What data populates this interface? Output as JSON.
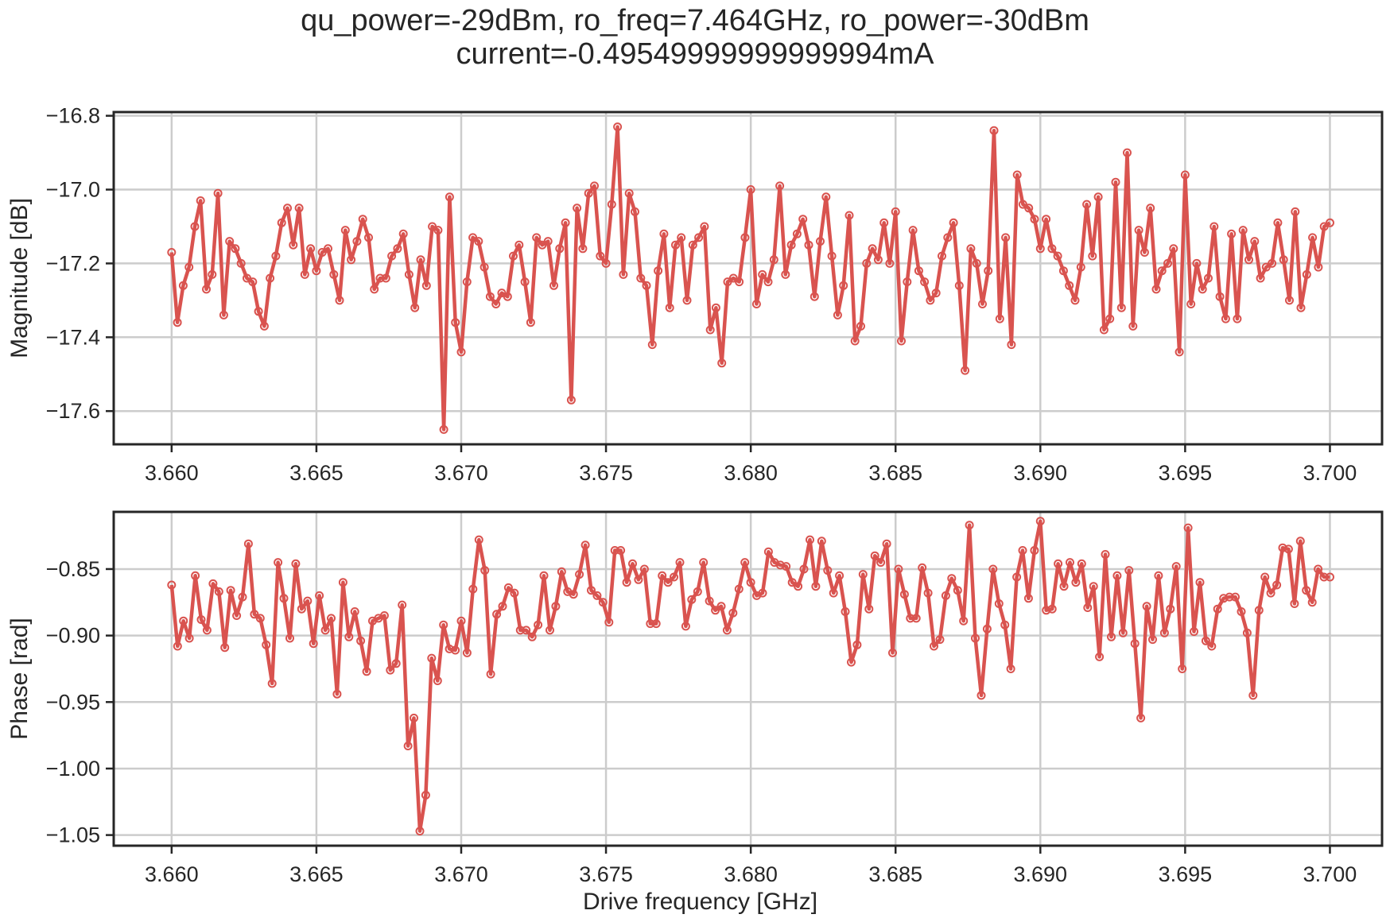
{
  "figure": {
    "title_line1": "qu_power=-29dBm, ro_freq=7.464GHz, ro_power=-30dBm",
    "title_line2": "current=-0.49549999999999994mA"
  },
  "colors": {
    "series": "#d9534f",
    "grid": "#cccccc",
    "axes": "#262626"
  },
  "chart_data": [
    {
      "type": "line",
      "xlabel": "",
      "ylabel": "Magnitude [dB]",
      "xlim": [
        3.658,
        3.7018
      ],
      "ylim": [
        -17.69,
        -16.79
      ],
      "xticks": [
        3.66,
        3.665,
        3.67,
        3.675,
        3.68,
        3.685,
        3.69,
        3.695,
        3.7
      ],
      "xtick_labels": [
        "3.660",
        "3.665",
        "3.670",
        "3.675",
        "3.680",
        "3.685",
        "3.690",
        "3.695",
        "3.700"
      ],
      "yticks": [
        -16.8,
        -17.0,
        -17.2,
        -17.4,
        -17.6
      ],
      "ytick_labels": [
        "−16.8",
        "−17.0",
        "−17.2",
        "−17.4",
        "−17.6"
      ],
      "grid": true,
      "markers": "open circles",
      "x_start": 3.66,
      "x_end": 3.7,
      "series": [
        {
          "values": [
            -17.17,
            -17.36,
            -17.26,
            -17.21,
            -17.1,
            -17.03,
            -17.27,
            -17.23,
            -17.01,
            -17.34,
            -17.14,
            -17.16,
            -17.2,
            -17.24,
            -17.25,
            -17.33,
            -17.37,
            -17.24,
            -17.18,
            -17.09,
            -17.05,
            -17.15,
            -17.05,
            -17.23,
            -17.16,
            -17.22,
            -17.17,
            -17.16,
            -17.23,
            -17.3,
            -17.11,
            -17.19,
            -17.14,
            -17.08,
            -17.13,
            -17.27,
            -17.24,
            -17.24,
            -17.18,
            -17.16,
            -17.12,
            -17.23,
            -17.32,
            -17.19,
            -17.26,
            -17.1,
            -17.11,
            -17.65,
            -17.02,
            -17.36,
            -17.44,
            -17.25,
            -17.13,
            -17.14,
            -17.21,
            -17.29,
            -17.31,
            -17.28,
            -17.29,
            -17.18,
            -17.15,
            -17.25,
            -17.36,
            -17.13,
            -17.15,
            -17.14,
            -17.26,
            -17.16,
            -17.09,
            -17.57,
            -17.05,
            -17.16,
            -17.01,
            -16.99,
            -17.18,
            -17.2,
            -17.04,
            -16.83,
            -17.23,
            -17.01,
            -17.06,
            -17.24,
            -17.26,
            -17.42,
            -17.22,
            -17.12,
            -17.32,
            -17.15,
            -17.13,
            -17.3,
            -17.15,
            -17.13,
            -17.1,
            -17.38,
            -17.32,
            -17.47,
            -17.25,
            -17.24,
            -17.25,
            -17.13,
            -17.0,
            -17.31,
            -17.23,
            -17.25,
            -17.19,
            -16.99,
            -17.23,
            -17.15,
            -17.12,
            -17.08,
            -17.15,
            -17.29,
            -17.14,
            -17.02,
            -17.18,
            -17.34,
            -17.26,
            -17.07,
            -17.41,
            -17.37,
            -17.2,
            -17.16,
            -17.19,
            -17.09,
            -17.2,
            -17.06,
            -17.41,
            -17.25,
            -17.11,
            -17.22,
            -17.25,
            -17.3,
            -17.28,
            -17.18,
            -17.13,
            -17.09,
            -17.26,
            -17.49,
            -17.16,
            -17.2,
            -17.31,
            -17.22,
            -16.84,
            -17.35,
            -17.13,
            -17.42,
            -16.96,
            -17.04,
            -17.05,
            -17.08,
            -17.16,
            -17.08,
            -17.16,
            -17.18,
            -17.22,
            -17.26,
            -17.3,
            -17.21,
            -17.04,
            -17.18,
            -17.02,
            -17.38,
            -17.35,
            -16.98,
            -17.32,
            -16.9,
            -17.37,
            -17.11,
            -17.17,
            -17.05,
            -17.27,
            -17.22,
            -17.2,
            -17.16,
            -17.44,
            -16.96,
            -17.31,
            -17.2,
            -17.27,
            -17.24,
            -17.1,
            -17.29,
            -17.35,
            -17.12,
            -17.35,
            -17.11,
            -17.19,
            -17.14,
            -17.24,
            -17.21,
            -17.2,
            -17.09,
            -17.19,
            -17.3,
            -17.06,
            -17.32,
            -17.23,
            -17.13,
            -17.21,
            -17.1,
            -17.09
          ]
        }
      ]
    },
    {
      "type": "line",
      "xlabel": "Drive frequency [GHz]",
      "ylabel": "Phase [rad]",
      "xlim": [
        3.658,
        3.7018
      ],
      "ylim": [
        -1.058,
        -0.807
      ],
      "xticks": [
        3.66,
        3.665,
        3.67,
        3.675,
        3.68,
        3.685,
        3.69,
        3.695,
        3.7
      ],
      "xtick_labels": [
        "3.660",
        "3.665",
        "3.670",
        "3.675",
        "3.680",
        "3.685",
        "3.690",
        "3.695",
        "3.700"
      ],
      "yticks": [
        -0.85,
        -0.9,
        -0.95,
        -1.0,
        -1.05
      ],
      "ytick_labels": [
        "−0.85",
        "−0.90",
        "−0.95",
        "−1.00",
        "−1.05"
      ],
      "grid": true,
      "markers": "open circles",
      "x_start": 3.66,
      "x_end": 3.7,
      "series": [
        {
          "values": [
            -0.862,
            -0.908,
            -0.889,
            -0.902,
            -0.855,
            -0.888,
            -0.896,
            -0.861,
            -0.867,
            -0.909,
            -0.866,
            -0.885,
            -0.871,
            -0.831,
            -0.884,
            -0.887,
            -0.907,
            -0.936,
            -0.845,
            -0.872,
            -0.902,
            -0.846,
            -0.88,
            -0.874,
            -0.906,
            -0.87,
            -0.896,
            -0.887,
            -0.944,
            -0.86,
            -0.901,
            -0.882,
            -0.904,
            -0.927,
            -0.889,
            -0.887,
            -0.885,
            -0.926,
            -0.921,
            -0.877,
            -0.983,
            -0.962,
            -1.047,
            -1.02,
            -0.917,
            -0.934,
            -0.892,
            -0.91,
            -0.911,
            -0.889,
            -0.913,
            -0.865,
            -0.828,
            -0.851,
            -0.929,
            -0.884,
            -0.878,
            -0.864,
            -0.868,
            -0.896,
            -0.896,
            -0.901,
            -0.892,
            -0.855,
            -0.896,
            -0.878,
            -0.852,
            -0.867,
            -0.869,
            -0.854,
            -0.832,
            -0.866,
            -0.87,
            -0.875,
            -0.89,
            -0.836,
            -0.836,
            -0.86,
            -0.846,
            -0.858,
            -0.85,
            -0.891,
            -0.891,
            -0.855,
            -0.86,
            -0.856,
            -0.845,
            -0.893,
            -0.873,
            -0.867,
            -0.845,
            -0.874,
            -0.881,
            -0.878,
            -0.896,
            -0.883,
            -0.865,
            -0.845,
            -0.86,
            -0.87,
            -0.868,
            -0.837,
            -0.845,
            -0.847,
            -0.848,
            -0.86,
            -0.863,
            -0.85,
            -0.828,
            -0.863,
            -0.829,
            -0.851,
            -0.868,
            -0.855,
            -0.882,
            -0.92,
            -0.907,
            -0.854,
            -0.88,
            -0.84,
            -0.845,
            -0.831,
            -0.913,
            -0.85,
            -0.869,
            -0.887,
            -0.887,
            -0.849,
            -0.868,
            -0.908,
            -0.903,
            -0.87,
            -0.857,
            -0.866,
            -0.889,
            -0.817,
            -0.902,
            -0.945,
            -0.895,
            -0.85,
            -0.876,
            -0.892,
            -0.925,
            -0.856,
            -0.836,
            -0.872,
            -0.836,
            -0.814,
            -0.881,
            -0.88,
            -0.846,
            -0.863,
            -0.845,
            -0.86,
            -0.846,
            -0.879,
            -0.863,
            -0.916,
            -0.839,
            -0.901,
            -0.855,
            -0.898,
            -0.851,
            -0.906,
            -0.962,
            -0.878,
            -0.903,
            -0.855,
            -0.898,
            -0.88,
            -0.848,
            -0.925,
            -0.819,
            -0.897,
            -0.86,
            -0.904,
            -0.908,
            -0.88,
            -0.872,
            -0.871,
            -0.871,
            -0.882,
            -0.898,
            -0.945,
            -0.881,
            -0.856,
            -0.868,
            -0.862,
            -0.834,
            -0.835,
            -0.876,
            -0.829,
            -0.866,
            -0.875,
            -0.85,
            -0.856,
            -0.856
          ]
        }
      ]
    }
  ]
}
